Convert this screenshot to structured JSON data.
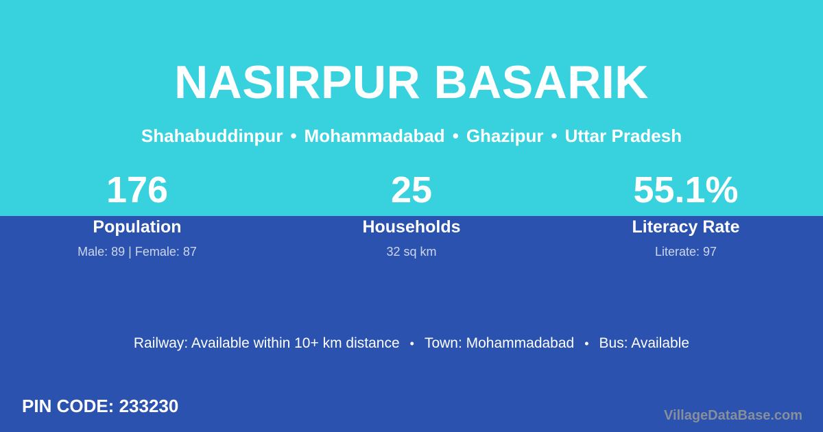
{
  "colors": {
    "top_background": "#38d2de",
    "bottom_background": "#2a52ae",
    "primary_text": "#ffffff",
    "muted_text": "#b9c5e2",
    "watermark_text": "#878e9c"
  },
  "separator": "•",
  "header": {
    "title": "NASIRPUR BASARIK",
    "location": [
      "Shahabuddinpur",
      "Mohammadabad",
      "Ghazipur",
      "Uttar Pradesh"
    ]
  },
  "stats": [
    {
      "value": "176",
      "label": "Population",
      "detail": "Male: 89 | Female: 87"
    },
    {
      "value": "25",
      "label": "Households",
      "detail": "32 sq km"
    },
    {
      "value": "55.1%",
      "label": "Literacy Rate",
      "detail": "Literate: 97"
    }
  ],
  "facts": [
    "Railway: Available within 10+ km distance",
    "Town: Mohammadabad",
    "Bus: Available"
  ],
  "pin": {
    "label": "PIN CODE:",
    "value": "233230"
  },
  "watermark": "VillageDataBase.com"
}
